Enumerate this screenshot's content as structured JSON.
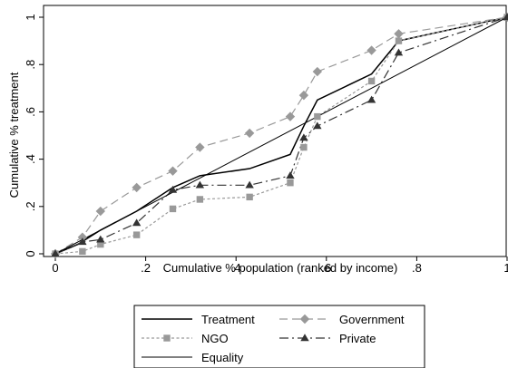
{
  "chart_data": {
    "type": "line",
    "title": "",
    "xlabel": "Cumulative % population (ranked by income)",
    "ylabel": "Cumulative % treatment",
    "xlim": [
      0,
      1
    ],
    "ylim": [
      0,
      1
    ],
    "x_ticks": [
      0,
      0.2,
      0.4,
      0.6,
      0.8,
      1
    ],
    "x_tick_labels": [
      "0",
      ".2",
      ".4",
      ".6",
      ".8",
      "1"
    ],
    "y_ticks": [
      0,
      0.2,
      0.4,
      0.6,
      0.8,
      1
    ],
    "y_tick_labels": [
      "0",
      ".2",
      ".4",
      ".6",
      ".8",
      "1"
    ],
    "grid": false,
    "legend_position": "bottom",
    "series": [
      {
        "name": "Treatment",
        "style": "solid",
        "marker": "none",
        "color": "#000000",
        "x": [
          0,
          0.05,
          0.1,
          0.18,
          0.26,
          0.32,
          0.43,
          0.52,
          0.55,
          0.58,
          0.7,
          0.76,
          1.0
        ],
        "y": [
          0,
          0.04,
          0.1,
          0.18,
          0.28,
          0.33,
          0.36,
          0.42,
          0.54,
          0.65,
          0.76,
          0.9,
          1.0
        ]
      },
      {
        "name": "Government",
        "style": "dashed",
        "marker": "diamond",
        "color": "#999999",
        "x": [
          0,
          0.06,
          0.1,
          0.18,
          0.26,
          0.32,
          0.43,
          0.52,
          0.55,
          0.58,
          0.7,
          0.76,
          1.0
        ],
        "y": [
          0,
          0.07,
          0.18,
          0.28,
          0.35,
          0.45,
          0.51,
          0.58,
          0.67,
          0.77,
          0.86,
          0.93,
          1.0
        ]
      },
      {
        "name": "NGO",
        "style": "dotted",
        "marker": "square",
        "color": "#999999",
        "x": [
          0,
          0.06,
          0.1,
          0.18,
          0.26,
          0.32,
          0.43,
          0.52,
          0.55,
          0.58,
          0.7,
          0.76,
          1.0
        ],
        "y": [
          0,
          0.01,
          0.04,
          0.08,
          0.19,
          0.23,
          0.24,
          0.3,
          0.45,
          0.58,
          0.73,
          0.9,
          1.0
        ]
      },
      {
        "name": "Private",
        "style": "dashdot",
        "marker": "triangle",
        "color": "#333333",
        "x": [
          0,
          0.06,
          0.1,
          0.18,
          0.26,
          0.32,
          0.43,
          0.52,
          0.55,
          0.58,
          0.7,
          0.76,
          1.0
        ],
        "y": [
          0,
          0.05,
          0.06,
          0.13,
          0.27,
          0.29,
          0.29,
          0.33,
          0.49,
          0.54,
          0.65,
          0.85,
          1.0
        ]
      },
      {
        "name": "Equality",
        "style": "solid-thin",
        "marker": "none",
        "color": "#000000",
        "x": [
          0,
          1
        ],
        "y": [
          0,
          1
        ]
      }
    ]
  }
}
